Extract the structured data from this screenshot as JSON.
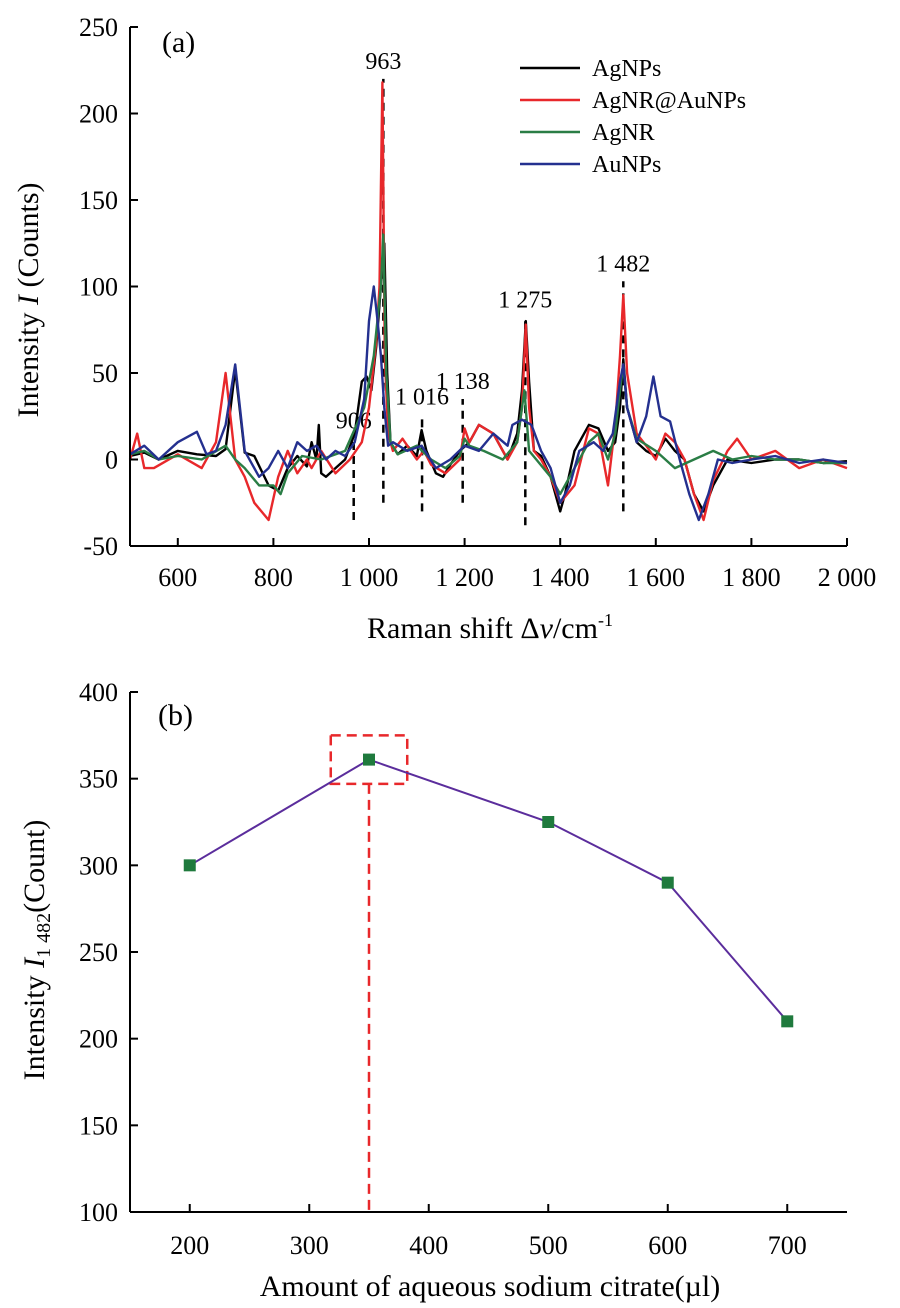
{
  "chart_data": [
    {
      "type": "line",
      "panel_label": "(a)",
      "xlabel_main": "Raman shift Δ",
      "xlabel_var": "v",
      "xlabel_unit": "/cm",
      "xlabel_sup": "-1",
      "ylabel_main": "Intensity ",
      "ylabel_var": "I",
      "ylabel_unit": " (Counts)",
      "xlim": [
        500,
        2000
      ],
      "ylim": [
        -50,
        250
      ],
      "xticks": [
        600,
        800,
        1000,
        1200,
        1400,
        1600,
        1800,
        2000
      ],
      "xtick_labels": [
        "600",
        "800",
        "1 000",
        "1 200",
        "1 400",
        "1 600",
        "1 800",
        "2 000"
      ],
      "yticks": [
        -50,
        0,
        50,
        100,
        150,
        200,
        250
      ],
      "ytick_labels": [
        "-50",
        "0",
        "50",
        "100",
        "150",
        "200",
        "250"
      ],
      "legend_position": "top-right",
      "series": [
        {
          "name": "AgNPs",
          "color": "#000000",
          "x": [
            500,
            530,
            560,
            600,
            640,
            680,
            700,
            720,
            740,
            760,
            790,
            810,
            830,
            850,
            870,
            880,
            890,
            895,
            900,
            910,
            930,
            950,
            970,
            985,
            995,
            1005,
            1015,
            1025,
            1032,
            1038,
            1045,
            1060,
            1080,
            1100,
            1110,
            1120,
            1140,
            1155,
            1170,
            1190,
            1210,
            1230,
            1260,
            1290,
            1310,
            1320,
            1328,
            1335,
            1345,
            1360,
            1380,
            1400,
            1410,
            1430,
            1460,
            1480,
            1500,
            1515,
            1525,
            1532,
            1540,
            1560,
            1580,
            1600,
            1620,
            1640,
            1660,
            1680,
            1700,
            1720,
            1750,
            1800,
            1850,
            1900,
            1950,
            2000
          ],
          "y": [
            2,
            4,
            0,
            5,
            3,
            2,
            6,
            52,
            4,
            2,
            -15,
            -18,
            -5,
            2,
            -4,
            10,
            0,
            20,
            -8,
            -10,
            -5,
            0,
            15,
            45,
            48,
            40,
            65,
            100,
            125,
            50,
            10,
            3,
            8,
            2,
            17,
            5,
            -8,
            -10,
            -3,
            5,
            10,
            20,
            15,
            0,
            15,
            40,
            80,
            45,
            5,
            2,
            -10,
            -30,
            -20,
            5,
            20,
            18,
            5,
            10,
            30,
            58,
            30,
            10,
            5,
            2,
            12,
            5,
            0,
            -20,
            -30,
            -15,
            0,
            -2,
            0,
            0,
            -2,
            -1
          ]
        },
        {
          "name": "AgNR@AuNPs",
          "color": "#e8282b",
          "x": [
            500,
            515,
            530,
            550,
            600,
            650,
            680,
            700,
            720,
            740,
            760,
            790,
            810,
            830,
            850,
            870,
            880,
            900,
            930,
            960,
            985,
            1000,
            1015,
            1022,
            1028,
            1033,
            1040,
            1050,
            1070,
            1100,
            1115,
            1130,
            1160,
            1190,
            1200,
            1210,
            1230,
            1260,
            1290,
            1310,
            1320,
            1328,
            1335,
            1345,
            1360,
            1380,
            1400,
            1430,
            1460,
            1480,
            1500,
            1515,
            1525,
            1532,
            1540,
            1560,
            1580,
            1600,
            1620,
            1640,
            1660,
            1680,
            1700,
            1720,
            1750,
            1770,
            1800,
            1850,
            1900,
            1950,
            2000
          ],
          "y": [
            0,
            15,
            -5,
            -5,
            3,
            -5,
            10,
            50,
            0,
            -10,
            -25,
            -35,
            -10,
            5,
            -8,
            0,
            -5,
            5,
            -8,
            0,
            10,
            30,
            68,
            100,
            218,
            60,
            15,
            5,
            12,
            0,
            5,
            -3,
            -8,
            0,
            18,
            10,
            20,
            15,
            0,
            10,
            30,
            78,
            30,
            5,
            0,
            -10,
            -25,
            -15,
            18,
            15,
            -15,
            20,
            60,
            95,
            50,
            15,
            8,
            0,
            15,
            10,
            0,
            -20,
            -35,
            -12,
            5,
            12,
            0,
            5,
            -5,
            0,
            -5
          ]
        },
        {
          "name": "AgNR",
          "color": "#2a7d45",
          "x": [
            500,
            530,
            560,
            600,
            650,
            700,
            720,
            740,
            770,
            800,
            815,
            830,
            860,
            900,
            950,
            990,
            1010,
            1025,
            1030,
            1036,
            1045,
            1060,
            1100,
            1130,
            1160,
            1190,
            1200,
            1210,
            1240,
            1280,
            1310,
            1325,
            1335,
            1350,
            1380,
            1400,
            1430,
            1460,
            1480,
            1500,
            1515,
            1525,
            1532,
            1540,
            1560,
            1600,
            1640,
            1680,
            1720,
            1760,
            1800,
            1850,
            1900,
            1950,
            2000
          ],
          "y": [
            3,
            5,
            0,
            2,
            0,
            8,
            0,
            -5,
            -15,
            -15,
            -20,
            -8,
            2,
            0,
            5,
            30,
            60,
            100,
            130,
            50,
            10,
            3,
            8,
            0,
            -5,
            2,
            12,
            8,
            5,
            0,
            10,
            40,
            5,
            0,
            -10,
            -20,
            -5,
            10,
            15,
            0,
            15,
            40,
            55,
            30,
            12,
            5,
            -5,
            0,
            5,
            0,
            2,
            0,
            0,
            -2,
            -2
          ]
        },
        {
          "name": "AuNPs",
          "color": "#24308f",
          "x": [
            500,
            530,
            560,
            600,
            640,
            660,
            680,
            700,
            720,
            740,
            770,
            790,
            810,
            830,
            850,
            870,
            890,
            910,
            930,
            950,
            970,
            990,
            1000,
            1010,
            1018,
            1025,
            1032,
            1040,
            1050,
            1080,
            1110,
            1140,
            1170,
            1200,
            1230,
            1260,
            1290,
            1300,
            1320,
            1340,
            1360,
            1380,
            1400,
            1420,
            1440,
            1470,
            1490,
            1510,
            1525,
            1532,
            1540,
            1560,
            1580,
            1595,
            1610,
            1630,
            1650,
            1670,
            1690,
            1710,
            1730,
            1760,
            1800,
            1850,
            1900,
            1950,
            2000
          ],
          "y": [
            3,
            8,
            0,
            10,
            16,
            3,
            5,
            20,
            55,
            5,
            -10,
            -5,
            5,
            -5,
            10,
            5,
            8,
            0,
            5,
            2,
            10,
            35,
            80,
            100,
            80,
            60,
            30,
            8,
            10,
            5,
            8,
            -5,
            0,
            8,
            5,
            15,
            8,
            20,
            23,
            20,
            5,
            -5,
            -25,
            -15,
            5,
            10,
            5,
            15,
            45,
            55,
            30,
            10,
            25,
            48,
            25,
            22,
            0,
            -20,
            -35,
            -20,
            0,
            -2,
            0,
            2,
            -2,
            0,
            -2
          ]
        }
      ],
      "annotations": [
        {
          "text": "963",
          "x": 1030,
          "line_from": -25,
          "line_to": 220
        },
        {
          "text": "906",
          "x": 968,
          "line_from": -35,
          "line_to": 12
        },
        {
          "text": "1 016",
          "x": 1111,
          "line_from": -30,
          "line_to": 26
        },
        {
          "text": "1 138",
          "x": 1196,
          "line_from": -25,
          "line_to": 35
        },
        {
          "text": "1 275",
          "x": 1327,
          "line_from": -38,
          "line_to": 82
        },
        {
          "text": "1 482",
          "x": 1532,
          "line_from": -30,
          "line_to": 103
        }
      ]
    },
    {
      "type": "line",
      "panel_label": "(b)",
      "xlabel": "Amount of aqueous sodium citrate(µl)",
      "ylabel_main": "Intensity ",
      "ylabel_var": "I",
      "ylabel_sub": "1 482",
      "ylabel_unit": "(Count)",
      "xlim": [
        150,
        750
      ],
      "ylim": [
        100,
        400
      ],
      "xticks": [
        200,
        300,
        400,
        500,
        600,
        700
      ],
      "xtick_labels": [
        "200",
        "300",
        "400",
        "500",
        "600",
        "700"
      ],
      "yticks": [
        100,
        150,
        200,
        250,
        300,
        350,
        400
      ],
      "ytick_labels": [
        "100",
        "150",
        "200",
        "250",
        "300",
        "350",
        "400"
      ],
      "x": [
        200,
        350,
        500,
        600,
        700
      ],
      "y": [
        300,
        361,
        325,
        290,
        210
      ],
      "line_color": "#5b2d9c",
      "marker_color": "#1f7a3d",
      "highlight": {
        "x": 350,
        "x_range": [
          318,
          382
        ],
        "y_range": [
          347,
          375
        ],
        "color": "#e8282b"
      }
    }
  ]
}
